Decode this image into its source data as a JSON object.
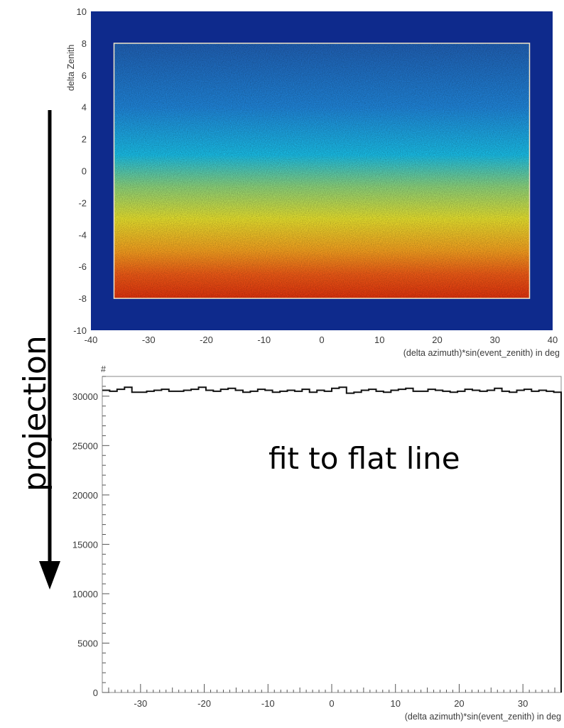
{
  "chart_data": [
    {
      "type": "heatmap",
      "xlabel": "(delta azimuth)*sin(event_zenith) in deg",
      "ylabel": "delta Zenith",
      "xlim": [
        -40,
        40
      ],
      "ylim": [
        -10,
        10
      ],
      "x_ticks": [
        -40,
        -30,
        -20,
        -10,
        0,
        10,
        20,
        30,
        40
      ],
      "y_ticks": [
        -10,
        -8,
        -6,
        -4,
        -2,
        0,
        2,
        4,
        6,
        8,
        10
      ],
      "filled_region": {
        "x": [
          -36,
          36
        ],
        "y": [
          -8,
          8
        ]
      },
      "color_gradient": [
        {
          "y": 8,
          "color": "#1f5fb3"
        },
        {
          "y": 4,
          "color": "#1f84d8"
        },
        {
          "y": 1,
          "color": "#19bde6"
        },
        {
          "y": -1,
          "color": "#8cd37a"
        },
        {
          "y": -3,
          "color": "#e6e02e"
        },
        {
          "y": -5,
          "color": "#f4a01f"
        },
        {
          "y": -6.5,
          "color": "#ee5a16"
        },
        {
          "y": -8,
          "color": "#e0320d"
        }
      ],
      "background_color": "#0e2a8c",
      "annotation": "projection"
    },
    {
      "type": "line",
      "xlabel": "(delta azimuth)*sin(event_zenith) in deg",
      "ylabel": "#",
      "xlim": [
        -36,
        36
      ],
      "ylim": [
        0,
        32000
      ],
      "x_ticks": [
        -30,
        -20,
        -10,
        0,
        10,
        20,
        30
      ],
      "y_ticks": [
        0,
        5000,
        10000,
        15000,
        20000,
        25000,
        30000
      ],
      "step_values": [
        30600,
        30500,
        30700,
        30900,
        30400,
        30400,
        30500,
        30600,
        30700,
        30500,
        30500,
        30600,
        30700,
        30900,
        30600,
        30500,
        30700,
        30800,
        30600,
        30400,
        30500,
        30700,
        30600,
        30400,
        30500,
        30600,
        30500,
        30700,
        30400,
        30600,
        30500,
        30800,
        30900,
        30300,
        30400,
        30600,
        30700,
        30500,
        30400,
        30600,
        30700,
        30800,
        30500,
        30500,
        30700,
        30600,
        30500,
        30400,
        30500,
        30700,
        30600,
        30500,
        30600,
        30800,
        30500,
        30400,
        30600,
        30700,
        30500,
        30600,
        30500,
        30400
      ],
      "annotation": "fit to flat line"
    }
  ]
}
